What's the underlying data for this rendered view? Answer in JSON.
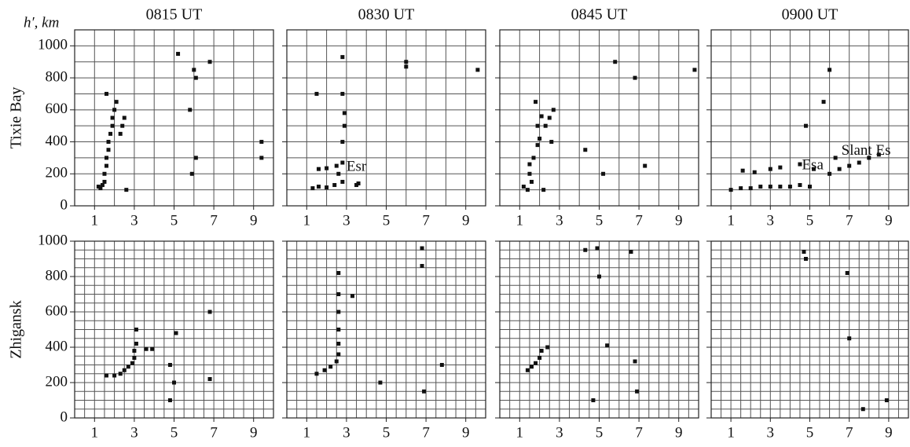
{
  "chart_data": [
    {
      "type": "scatter",
      "title": "0815 UT",
      "axis_label": "h′, km",
      "row_label": "Tixie Bay",
      "show_ytick_labels": true,
      "color": "#111111",
      "x": [
        1.2,
        1.3,
        1.4,
        1.5,
        1.5,
        1.6,
        1.6,
        1.7,
        1.7,
        1.8,
        1.9,
        1.9,
        2.0,
        2.1,
        1.6,
        2.4,
        2.3,
        2.5,
        2.6,
        5.2,
        6.0,
        6.1,
        5.8,
        6.1,
        5.9,
        9.4,
        9.4,
        6.8
      ],
      "y": [
        120,
        110,
        130,
        150,
        200,
        250,
        300,
        350,
        400,
        450,
        500,
        550,
        600,
        650,
        700,
        500,
        450,
        550,
        100,
        950,
        850,
        800,
        600,
        300,
        200,
        400,
        300,
        900
      ],
      "xlim": [
        0,
        10
      ],
      "ylim": [
        0,
        1100
      ],
      "xticks": [
        1,
        3,
        5,
        7,
        9
      ],
      "yticks": [
        0,
        200,
        400,
        600,
        800,
        1000
      ],
      "xgrid": [
        1,
        2,
        3,
        4,
        5,
        6,
        7,
        8,
        9
      ],
      "ygrid": [
        100,
        200,
        300,
        400,
        500,
        600,
        700,
        800,
        900,
        1000
      ]
    },
    {
      "type": "scatter",
      "title": "0830 UT",
      "show_ytick_labels": false,
      "color": "#111111",
      "x": [
        1.3,
        1.6,
        2.0,
        2.4,
        2.8,
        2.6,
        1.6,
        2.0,
        2.5,
        2.8,
        2.8,
        2.9,
        2.9,
        2.8,
        3.6,
        3.5,
        6.0,
        6.0,
        9.6,
        2.8,
        1.5
      ],
      "y": [
        110,
        120,
        115,
        130,
        150,
        200,
        230,
        235,
        250,
        270,
        400,
        500,
        580,
        700,
        140,
        130,
        900,
        870,
        850,
        930,
        700
      ],
      "annotations": [
        {
          "text": "Esr",
          "x": 3.0,
          "y": 240
        }
      ],
      "xlim": [
        0,
        10
      ],
      "ylim": [
        0,
        1100
      ],
      "xticks": [
        1,
        3,
        5,
        7,
        9
      ],
      "yticks": [
        0,
        200,
        400,
        600,
        800,
        1000
      ],
      "xgrid": [
        1,
        2,
        3,
        4,
        5,
        6,
        7,
        8,
        9
      ],
      "ygrid": [
        100,
        200,
        300,
        400,
        500,
        600,
        700,
        800,
        900,
        1000
      ]
    },
    {
      "type": "scatter",
      "title": "0845 UT",
      "show_ytick_labels": false,
      "color": "#111111",
      "x": [
        1.2,
        1.4,
        1.6,
        1.5,
        1.5,
        1.7,
        1.9,
        2.0,
        1.9,
        2.1,
        1.8,
        2.3,
        2.5,
        2.7,
        2.6,
        2.2,
        5.8,
        6.8,
        7.3,
        5.2,
        4.3,
        9.8
      ],
      "y": [
        120,
        100,
        150,
        200,
        260,
        300,
        380,
        420,
        500,
        560,
        650,
        500,
        550,
        600,
        400,
        100,
        900,
        800,
        250,
        200,
        350,
        850
      ],
      "xlim": [
        0,
        10
      ],
      "ylim": [
        0,
        1100
      ],
      "xticks": [
        1,
        3,
        5,
        7,
        9
      ],
      "yticks": [
        0,
        200,
        400,
        600,
        800,
        1000
      ],
      "xgrid": [
        1,
        2,
        3,
        4,
        5,
        6,
        7,
        8,
        9
      ],
      "ygrid": [
        100,
        200,
        300,
        400,
        500,
        600,
        700,
        800,
        900,
        1000
      ]
    },
    {
      "type": "scatter",
      "title": "0900 UT",
      "show_ytick_labels": false,
      "color": "#111111",
      "x": [
        1.0,
        1.5,
        2.0,
        2.5,
        3.0,
        3.5,
        4.0,
        4.5,
        5.0,
        1.6,
        2.2,
        3.0,
        3.5,
        4.5,
        5.2,
        6.0,
        6.5,
        7.0,
        7.5,
        8.0,
        8.5,
        4.8,
        6.0,
        5.7,
        6.3
      ],
      "y": [
        100,
        110,
        110,
        120,
        120,
        120,
        120,
        130,
        120,
        220,
        210,
        230,
        240,
        260,
        230,
        200,
        230,
        250,
        270,
        300,
        320,
        500,
        850,
        650,
        300
      ],
      "annotations": [
        {
          "text": "Esa",
          "x": 4.6,
          "y": 250
        },
        {
          "text": "Slant Es",
          "x": 6.6,
          "y": 340
        }
      ],
      "xlim": [
        0,
        10
      ],
      "ylim": [
        0,
        1100
      ],
      "xticks": [
        1,
        3,
        5,
        7,
        9
      ],
      "yticks": [
        0,
        200,
        400,
        600,
        800,
        1000
      ],
      "xgrid": [
        1,
        2,
        3,
        4,
        5,
        6,
        7,
        8,
        9
      ],
      "ygrid": [
        100,
        200,
        300,
        400,
        500,
        600,
        700,
        800,
        900,
        1000
      ]
    },
    {
      "type": "scatter",
      "row_label": "Zhigansk",
      "show_ytick_labels": true,
      "color": "#111111",
      "x": [
        1.6,
        2.0,
        2.3,
        2.5,
        2.7,
        2.9,
        3.0,
        3.0,
        3.1,
        3.1,
        3.6,
        3.9,
        4.8,
        5.0,
        4.8,
        6.8,
        6.8,
        5.1
      ],
      "y": [
        240,
        240,
        250,
        270,
        290,
        310,
        340,
        380,
        420,
        500,
        390,
        390,
        300,
        200,
        100,
        600,
        220,
        480
      ],
      "xlim": [
        0,
        10
      ],
      "ylim": [
        0,
        1000
      ],
      "xticks": [
        1,
        3,
        5,
        7,
        9
      ],
      "yticks": [
        0,
        200,
        400,
        600,
        800,
        1000
      ],
      "xgrid": [
        0.5,
        1,
        1.5,
        2,
        2.5,
        3,
        3.5,
        4,
        4.5,
        5,
        5.5,
        6,
        6.5,
        7,
        7.5,
        8,
        8.5,
        9,
        9.5
      ],
      "ygrid": [
        50,
        100,
        150,
        200,
        250,
        300,
        350,
        400,
        450,
        500,
        550,
        600,
        650,
        700,
        750,
        800,
        850,
        900,
        950
      ]
    },
    {
      "type": "scatter",
      "show_ytick_labels": false,
      "color": "#111111",
      "x": [
        1.5,
        1.9,
        2.2,
        2.5,
        2.6,
        2.6,
        2.6,
        2.6,
        2.6,
        2.6,
        3.3,
        6.8,
        6.8,
        6.9,
        7.8,
        4.7
      ],
      "y": [
        250,
        270,
        290,
        320,
        360,
        420,
        500,
        600,
        700,
        820,
        690,
        960,
        860,
        150,
        300,
        200
      ],
      "xlim": [
        0,
        10
      ],
      "ylim": [
        0,
        1000
      ],
      "xticks": [
        1,
        3,
        5,
        7,
        9
      ],
      "yticks": [
        0,
        200,
        400,
        600,
        800,
        1000
      ],
      "xgrid": [
        0.5,
        1,
        1.5,
        2,
        2.5,
        3,
        3.5,
        4,
        4.5,
        5,
        5.5,
        6,
        6.5,
        7,
        7.5,
        8,
        8.5,
        9,
        9.5
      ],
      "ygrid": [
        50,
        100,
        150,
        200,
        250,
        300,
        350,
        400,
        450,
        500,
        550,
        600,
        650,
        700,
        750,
        800,
        850,
        900,
        950
      ]
    },
    {
      "type": "scatter",
      "show_ytick_labels": false,
      "color": "#111111",
      "x": [
        1.4,
        1.6,
        1.8,
        2.0,
        2.1,
        2.4,
        4.9,
        5.0,
        4.3,
        6.6,
        6.8,
        5.4,
        4.7,
        6.9
      ],
      "y": [
        270,
        290,
        310,
        340,
        380,
        400,
        960,
        800,
        950,
        940,
        320,
        410,
        100,
        150
      ],
      "xlim": [
        0,
        10
      ],
      "ylim": [
        0,
        1000
      ],
      "xticks": [
        1,
        3,
        5,
        7,
        9
      ],
      "yticks": [
        0,
        200,
        400,
        600,
        800,
        1000
      ],
      "xgrid": [
        0.5,
        1,
        1.5,
        2,
        2.5,
        3,
        3.5,
        4,
        4.5,
        5,
        5.5,
        6,
        6.5,
        7,
        7.5,
        8,
        8.5,
        9,
        9.5
      ],
      "ygrid": [
        50,
        100,
        150,
        200,
        250,
        300,
        350,
        400,
        450,
        500,
        550,
        600,
        650,
        700,
        750,
        800,
        850,
        900,
        950
      ]
    },
    {
      "type": "scatter",
      "show_ytick_labels": false,
      "color": "#111111",
      "x": [
        4.7,
        4.8,
        7.0,
        6.9,
        7.7,
        8.9
      ],
      "y": [
        940,
        900,
        450,
        820,
        50,
        100
      ],
      "xlim": [
        0,
        10
      ],
      "ylim": [
        0,
        1000
      ],
      "xticks": [
        1,
        3,
        5,
        7,
        9
      ],
      "yticks": [
        0,
        200,
        400,
        600,
        800,
        1000
      ],
      "xgrid": [
        0.5,
        1,
        1.5,
        2,
        2.5,
        3,
        3.5,
        4,
        4.5,
        5,
        5.5,
        6,
        6.5,
        7,
        7.5,
        8,
        8.5,
        9,
        9.5
      ],
      "ygrid": [
        50,
        100,
        150,
        200,
        250,
        300,
        350,
        400,
        450,
        500,
        550,
        600,
        650,
        700,
        750,
        800,
        850,
        900,
        950
      ]
    }
  ]
}
